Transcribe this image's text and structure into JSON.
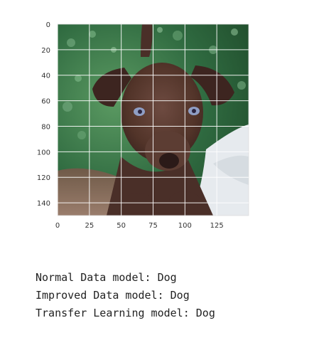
{
  "chart_data": {
    "type": "image",
    "x_ticks": [
      0,
      25,
      50,
      75,
      100,
      125
    ],
    "y_ticks": [
      0,
      20,
      40,
      60,
      80,
      100,
      120,
      140
    ],
    "xlim": [
      0,
      150
    ],
    "ylim": [
      150,
      0
    ],
    "grid": true,
    "colors": {
      "grid": "#ffffff",
      "grass": "#3f7a4a",
      "dog": "#5a3b32",
      "dog_dark": "#3d2520",
      "eyes": "#8f9ec4",
      "nose": "#2b1a18",
      "ground": "#7a5e50",
      "light_patch": "#e8ecef"
    },
    "image_subject": "dog-photo"
  },
  "output": {
    "lines": [
      "Normal Data model: Dog",
      "Improved Data model: Dog",
      "Transfer Learning model: Dog"
    ]
  }
}
